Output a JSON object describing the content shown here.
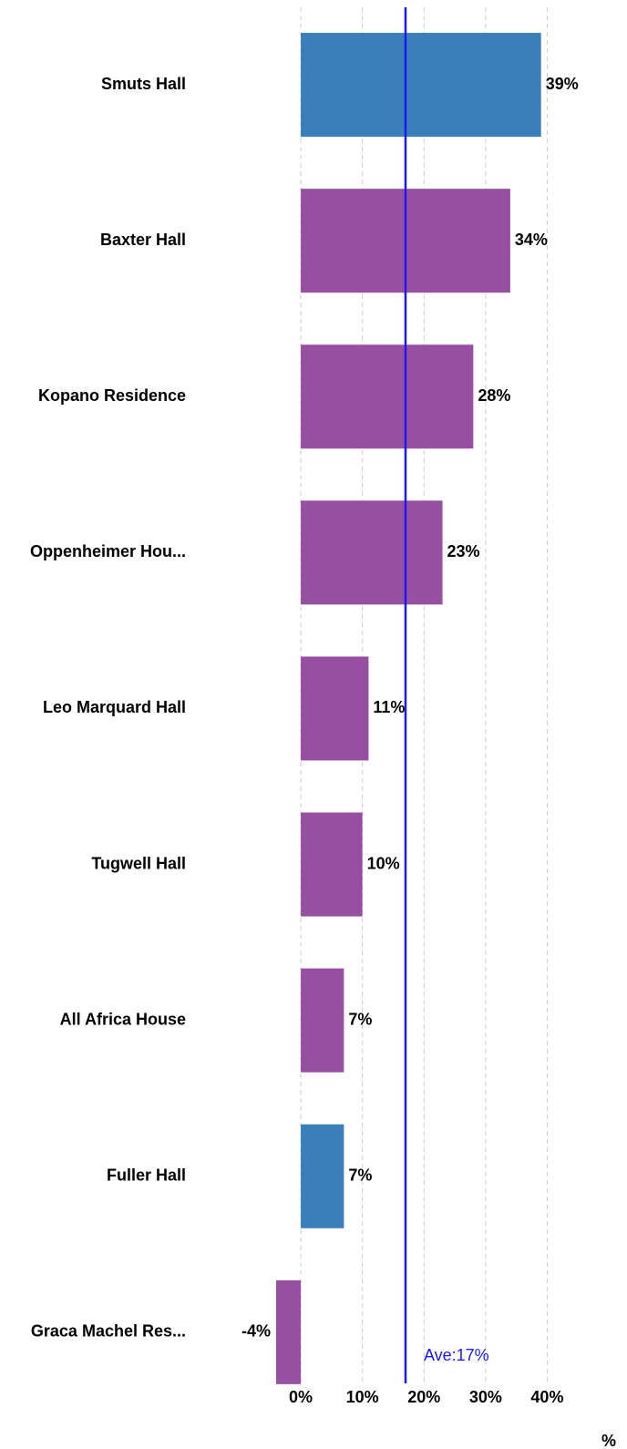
{
  "chart_data": {
    "type": "bar",
    "orientation": "horizontal",
    "categories": [
      "Smuts Hall",
      "Baxter Hall",
      "Kopano Residence",
      "Oppenheimer Hou...",
      "Leo Marquard Hall",
      "Tugwell Hall",
      "All Africa House",
      "Fuller Hall",
      "Graca Machel Res..."
    ],
    "values": [
      39,
      34,
      28,
      23,
      11,
      10,
      7,
      7,
      -4
    ],
    "value_labels": [
      "39%",
      "34%",
      "28%",
      "23%",
      "11%",
      "10%",
      "7%",
      "7%",
      "-4%"
    ],
    "colors": [
      "#3a7fba",
      "#974fa2",
      "#974fa2",
      "#974fa2",
      "#974fa2",
      "#974fa2",
      "#974fa2",
      "#3a7fba",
      "#974fa2"
    ],
    "xlim": [
      -5,
      45
    ],
    "xticks": [
      {
        "value": 0,
        "label": "0%"
      },
      {
        "value": 10,
        "label": "10%"
      },
      {
        "value": 20,
        "label": "20%"
      },
      {
        "value": 30,
        "label": "30%"
      },
      {
        "value": 40,
        "label": "40%"
      }
    ],
    "xlabel": "%",
    "grid": true,
    "average": {
      "value": 17,
      "label": "Ave:17%",
      "color": "#1a1aee"
    }
  }
}
